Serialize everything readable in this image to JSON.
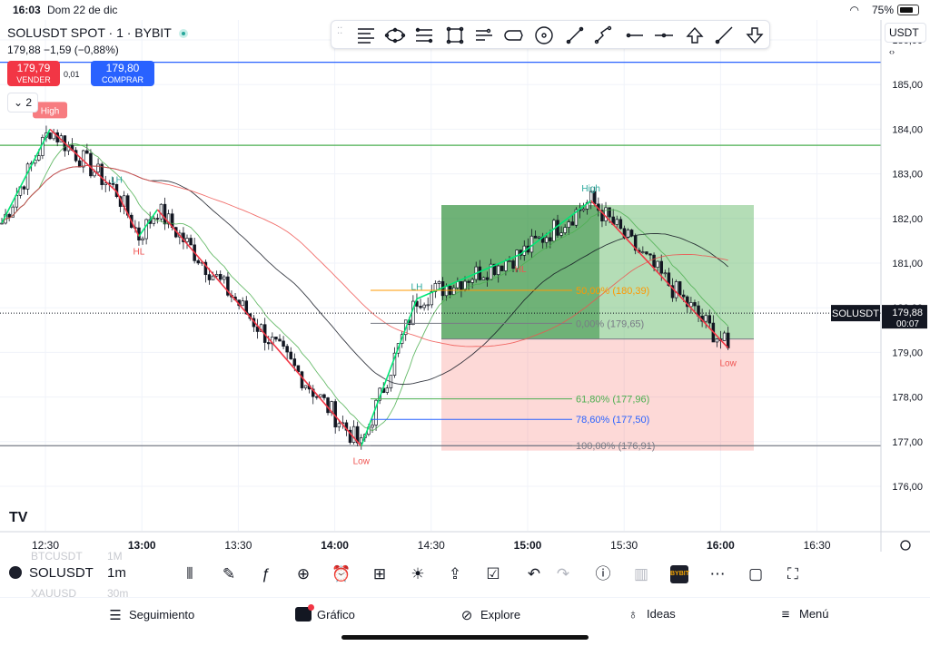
{
  "status": {
    "time": "16:03",
    "date": "Dom 22 de dic",
    "battery": "75%"
  },
  "symbol": {
    "header": "SOLUSDT SPOT · 1 · BYBIT",
    "last": "179,88",
    "change": "−1,59 (−0,88%)"
  },
  "trade": {
    "sell_price": "179,79",
    "sell_label": "VENDER",
    "spread": "0,01",
    "buy_price": "179,80",
    "buy_label": "COMPRAR"
  },
  "indicators_count": "2",
  "currency": "USDT",
  "colors": {
    "up": "#26a69a",
    "down": "#ef5350",
    "buy": "#2962ff",
    "sell": "#f23645"
  },
  "chart_data": {
    "type": "candlestick",
    "yaxis": {
      "ticks": [
        "186,00",
        "185,00",
        "184,00",
        "183,00",
        "182,00",
        "181,00",
        "180,00",
        "179,00",
        "178,00",
        "177,00",
        "176,00"
      ],
      "range": [
        175.5,
        186.5
      ]
    },
    "xaxis": {
      "ticks": [
        "12:30",
        "13:00",
        "13:30",
        "14:00",
        "14:30",
        "15:00",
        "15:30",
        "16:00",
        "16:30"
      ]
    },
    "price_label": {
      "symbol": "SOLUSDT",
      "price": "179,88",
      "countdown": "00:07"
    },
    "horizontal_lines": [
      {
        "price": 185.5,
        "color": "#2962ff"
      },
      {
        "price": 183.64,
        "color": "#4caf50"
      },
      {
        "price": 176.91,
        "color": "#787b86"
      }
    ],
    "fib_levels": [
      {
        "label": "50,00% (180,39)",
        "price": 180.39,
        "color": "#ff9800"
      },
      {
        "label": "0,00% (179,65)",
        "price": 179.65,
        "color": "#787b86"
      },
      {
        "label": "61,80% (177,96)",
        "price": 177.96,
        "color": "#4caf50"
      },
      {
        "label": "78,60% (177,50)",
        "price": 177.5,
        "color": "#2962ff"
      },
      {
        "label": "100,00% (176,91)",
        "price": 176.91,
        "color": "#787b86"
      }
    ],
    "position": {
      "entry": 179.3,
      "target": 182.3,
      "stop": 176.8
    },
    "pivot_labels": [
      {
        "text": "High",
        "kind": "tag"
      },
      {
        "text": "LH",
        "kind": "up"
      },
      {
        "text": "HL",
        "kind": "down"
      },
      {
        "text": "Low",
        "kind": "down"
      },
      {
        "text": "LH",
        "kind": "up"
      },
      {
        "text": "HL",
        "kind": "down"
      },
      {
        "text": "High",
        "kind": "up"
      },
      {
        "text": "Low",
        "kind": "down"
      }
    ],
    "zigzag_prices": [
      181.9,
      184.0,
      182.6,
      181.6,
      182.2,
      176.9,
      180.2,
      181.2,
      182.4,
      179.1
    ],
    "logo": "TV"
  },
  "bottom": {
    "symbol": "SOLUSDT",
    "timeframe": "1m",
    "ghost_rows": [
      {
        "sym": "BTCUSDT",
        "tf": "1M"
      },
      {
        "sym": "XAUUSD",
        "tf": "30m"
      }
    ],
    "tools": [
      "candles-icon",
      "draw-icon",
      "fx-icon",
      "plus-icon",
      "alert-icon",
      "grid-icon",
      "bulb-icon",
      "share-icon",
      "checklist-icon",
      "undo-icon",
      "redo-icon",
      "info-icon",
      "bars-icon",
      "bybit-icon",
      "more-icon",
      "rect-icon",
      "fullscreen-icon"
    ],
    "bybit_label": "BYBIT"
  },
  "tabs": [
    "Seguimiento",
    "Gráfico",
    "Explore",
    "Ideas",
    "Menú"
  ]
}
